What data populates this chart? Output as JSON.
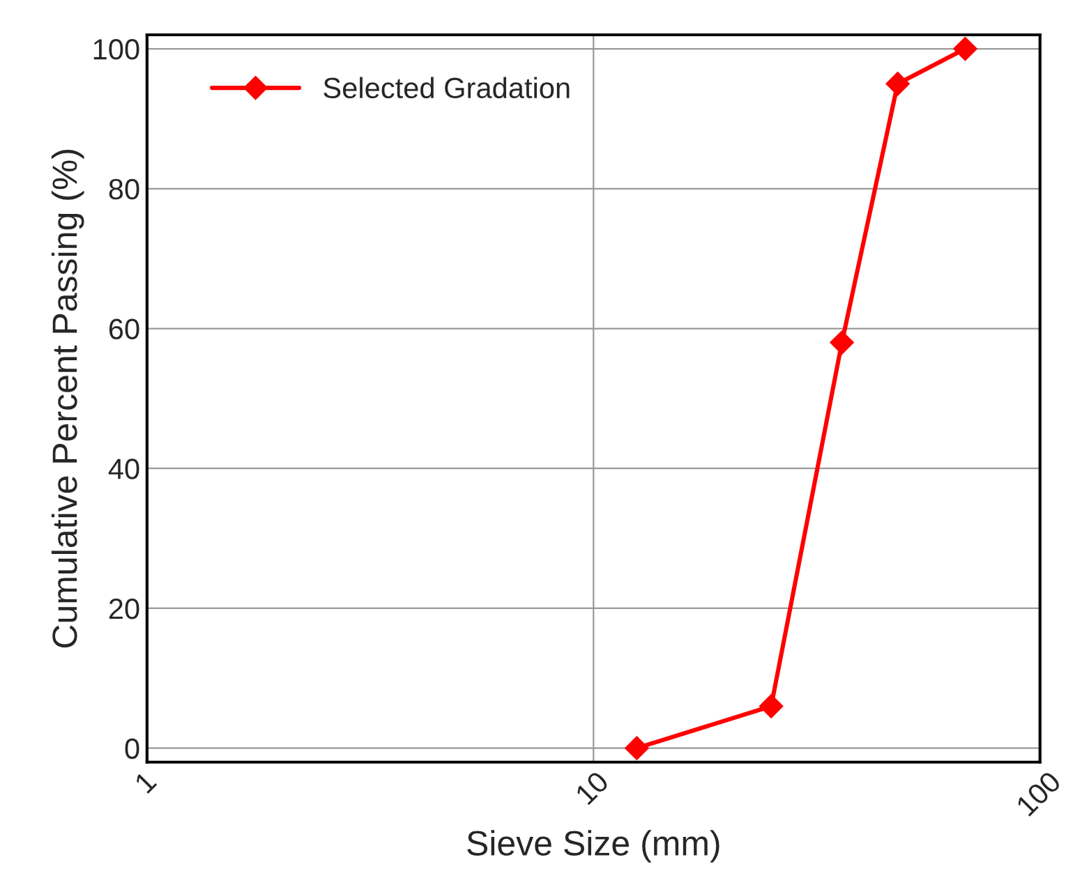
{
  "chart_data": {
    "type": "line",
    "xlabel": "Sieve Size (mm)",
    "ylabel": "Cumulative Percent Passing (%)",
    "x": [
      12.5,
      25,
      36,
      48,
      68
    ],
    "series": [
      {
        "name": "Selected Gradation",
        "color": "#ff0000",
        "values": [
          0,
          6,
          58,
          95,
          100
        ]
      }
    ],
    "log": "x",
    "xlim": [
      1,
      100
    ],
    "xticks": [
      1,
      10,
      100
    ],
    "ylim": [
      -2,
      102
    ],
    "yticks": [
      0,
      20,
      40,
      60,
      80,
      100
    ],
    "grid": true,
    "legend": "top left",
    "marker": "diamond",
    "line_style": "solid"
  }
}
